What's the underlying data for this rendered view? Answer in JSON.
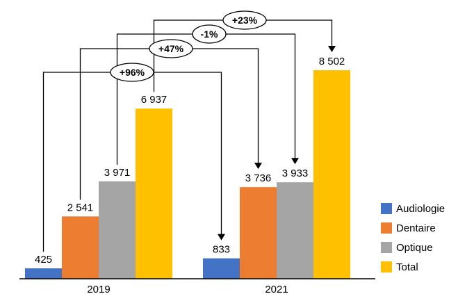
{
  "chart_data": {
    "type": "bar",
    "categories": [
      "2019",
      "2021"
    ],
    "series": [
      {
        "name": "Audiologie",
        "color": "#4472C4",
        "values": [
          425,
          833
        ],
        "value_labels": [
          "425",
          "833"
        ],
        "change_label": "+96%"
      },
      {
        "name": "Dentaire",
        "color": "#ED7D31",
        "values": [
          2541,
          3736
        ],
        "value_labels": [
          "2 541",
          "3 736"
        ],
        "change_label": "+47%"
      },
      {
        "name": "Optique",
        "color": "#A5A5A5",
        "values": [
          3971,
          3933
        ],
        "value_labels": [
          "3 971",
          "3 933"
        ],
        "change_label": "-1%"
      },
      {
        "name": "Total",
        "color": "#FFC000",
        "values": [
          6937,
          8502
        ],
        "value_labels": [
          "6 937",
          "8 502"
        ],
        "change_label": "+23%"
      }
    ],
    "ylim": [
      0,
      8502
    ],
    "grid": false,
    "legend_position": "right",
    "annotation_style": {
      "badge_fill": "#ffffff",
      "badge_stroke": "#000000",
      "line_color": "#000000"
    }
  }
}
